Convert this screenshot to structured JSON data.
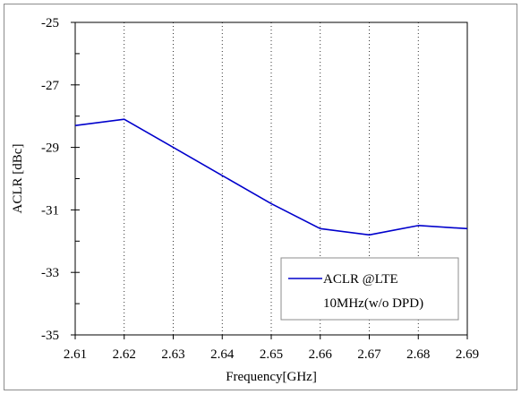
{
  "chart_data": {
    "type": "line",
    "title": "",
    "xlabel": "Frequency[GHz]",
    "ylabel": "ACLR [dBc]",
    "xlim": [
      2.61,
      2.69
    ],
    "ylim": [
      -35,
      -25
    ],
    "x_ticks": [
      2.61,
      2.62,
      2.63,
      2.64,
      2.65,
      2.66,
      2.67,
      2.68,
      2.69
    ],
    "x_tick_labels": [
      "2.61",
      "2.62",
      "2.63",
      "2.64",
      "2.65",
      "2.66",
      "2.67",
      "2.68",
      "2.69"
    ],
    "y_ticks": [
      -25,
      -27,
      -29,
      -31,
      -33,
      -35
    ],
    "y_tick_labels": [
      "-25",
      "-27",
      "-29",
      "-31",
      "-33",
      "-35"
    ],
    "grid": "vertical",
    "legend_position": "bottom-right",
    "series": [
      {
        "name": "ACLR @LTE 10MHz(w/o DPD)",
        "legend_lines": [
          "ACLR @LTE",
          "10MHz(w/o DPD)"
        ],
        "color": "#0000cc",
        "x": [
          2.61,
          2.62,
          2.63,
          2.64,
          2.65,
          2.66,
          2.67,
          2.68,
          2.69
        ],
        "y": [
          -28.3,
          -28.1,
          -29.0,
          -29.9,
          -30.8,
          -31.6,
          -31.8,
          -31.5,
          -31.6
        ]
      }
    ]
  }
}
